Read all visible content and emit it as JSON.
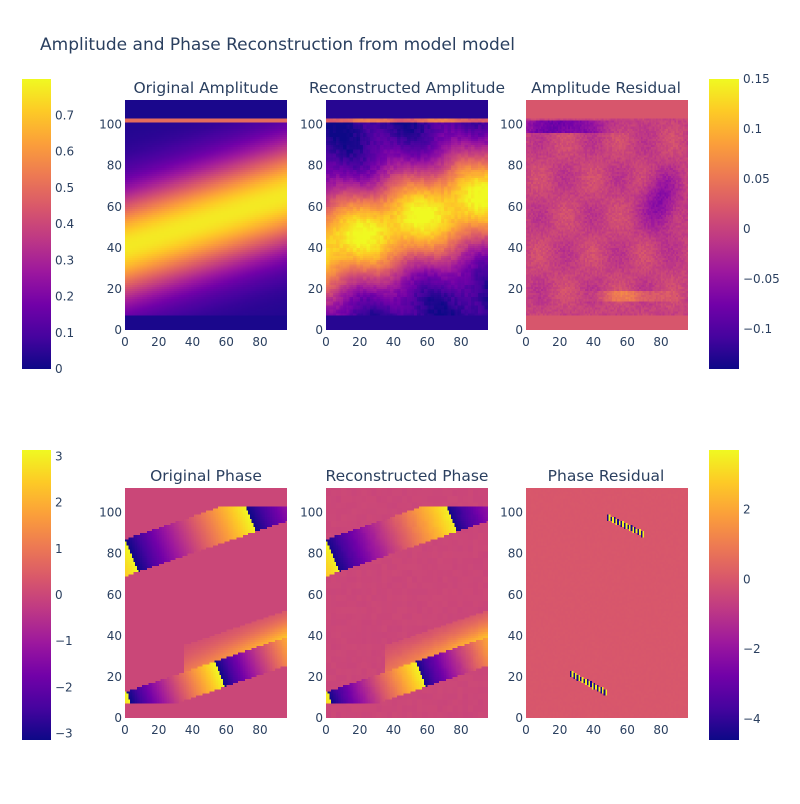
{
  "figure": {
    "title": "Amplitude and Phase Reconstruction from model model"
  },
  "colorscale": [
    "#0d0887",
    "#46039f",
    "#7201a8",
    "#9c179e",
    "#bd3786",
    "#d8576b",
    "#ed7953",
    "#fb9f3a",
    "#fdca26",
    "#f0f921"
  ],
  "chart_data": [
    {
      "type": "heatmap",
      "id": "orig_amp",
      "title": "Original Amplitude",
      "xlim": [
        0,
        96
      ],
      "ylim": [
        0,
        112
      ],
      "xticks": [
        "0",
        "20",
        "40",
        "60",
        "80"
      ],
      "yticks": [
        "0",
        "20",
        "40",
        "60",
        "80",
        "100"
      ],
      "zlim": [
        0,
        0.8
      ]
    },
    {
      "type": "heatmap",
      "id": "recon_amp",
      "title": "Reconstructed Amplitude",
      "xlim": [
        0,
        96
      ],
      "ylim": [
        0,
        112
      ],
      "xticks": [
        "0",
        "20",
        "40",
        "60",
        "80"
      ],
      "yticks": [
        "0",
        "20",
        "40",
        "60",
        "80",
        "100"
      ],
      "zlim": [
        0,
        0.8
      ]
    },
    {
      "type": "heatmap",
      "id": "amp_resid",
      "title": "Amplitude Residual",
      "xlim": [
        0,
        96
      ],
      "ylim": [
        0,
        112
      ],
      "xticks": [
        "0",
        "20",
        "40",
        "60",
        "80"
      ],
      "yticks": [
        "0",
        "20",
        "40",
        "60",
        "80",
        "100"
      ],
      "zlim": [
        -0.14,
        0.15
      ]
    },
    {
      "type": "heatmap",
      "id": "orig_phase",
      "title": "Original Phase",
      "xlim": [
        0,
        96
      ],
      "ylim": [
        0,
        112
      ],
      "xticks": [
        "0",
        "20",
        "40",
        "60",
        "80"
      ],
      "yticks": [
        "0",
        "20",
        "40",
        "60",
        "80",
        "100"
      ],
      "zlim": [
        -3.14,
        3.14
      ]
    },
    {
      "type": "heatmap",
      "id": "recon_phase",
      "title": "Reconstructed Phase",
      "xlim": [
        0,
        96
      ],
      "ylim": [
        0,
        112
      ],
      "xticks": [
        "0",
        "20",
        "40",
        "60",
        "80"
      ],
      "yticks": [
        "0",
        "20",
        "40",
        "60",
        "80",
        "100"
      ],
      "zlim": [
        -3.14,
        3.14
      ]
    },
    {
      "type": "heatmap",
      "id": "phase_resid",
      "title": "Phase Residual",
      "xlim": [
        0,
        96
      ],
      "ylim": [
        0,
        112
      ],
      "xticks": [
        "0",
        "20",
        "40",
        "60",
        "80"
      ],
      "yticks": [
        "0",
        "20",
        "40",
        "60",
        "80",
        "100"
      ],
      "zlim": [
        -4.6,
        3.7
      ]
    }
  ],
  "colorbars": [
    {
      "id": "cb_amp",
      "range": [
        0,
        0.8
      ],
      "ticks": [
        {
          "v": 0,
          "label": "0"
        },
        {
          "v": 0.1,
          "label": "0.1"
        },
        {
          "v": 0.2,
          "label": "0.2"
        },
        {
          "v": 0.3,
          "label": "0.3"
        },
        {
          "v": 0.4,
          "label": "0.4"
        },
        {
          "v": 0.5,
          "label": "0.5"
        },
        {
          "v": 0.6,
          "label": "0.6"
        },
        {
          "v": 0.7,
          "label": "0.7"
        }
      ]
    },
    {
      "id": "cb_amp_resid",
      "range": [
        -0.14,
        0.15
      ],
      "ticks": [
        {
          "v": -0.1,
          "label": "−0.1"
        },
        {
          "v": -0.05,
          "label": "−0.05"
        },
        {
          "v": 0,
          "label": "0"
        },
        {
          "v": 0.05,
          "label": "0.05"
        },
        {
          "v": 0.1,
          "label": "0.1"
        },
        {
          "v": 0.15,
          "label": "0.15"
        }
      ]
    },
    {
      "id": "cb_phase",
      "range": [
        -3.14,
        3.14
      ],
      "ticks": [
        {
          "v": -3,
          "label": "−3"
        },
        {
          "v": -2,
          "label": "−2"
        },
        {
          "v": -1,
          "label": "−1"
        },
        {
          "v": 0,
          "label": "0"
        },
        {
          "v": 1,
          "label": "1"
        },
        {
          "v": 2,
          "label": "2"
        },
        {
          "v": 3,
          "label": "3"
        }
      ]
    },
    {
      "id": "cb_phase_resid",
      "range": [
        -4.6,
        3.7
      ],
      "ticks": [
        {
          "v": -4,
          "label": "−4"
        },
        {
          "v": -2,
          "label": "−2"
        },
        {
          "v": 0,
          "label": "0"
        },
        {
          "v": 2,
          "label": "2"
        }
      ]
    }
  ]
}
